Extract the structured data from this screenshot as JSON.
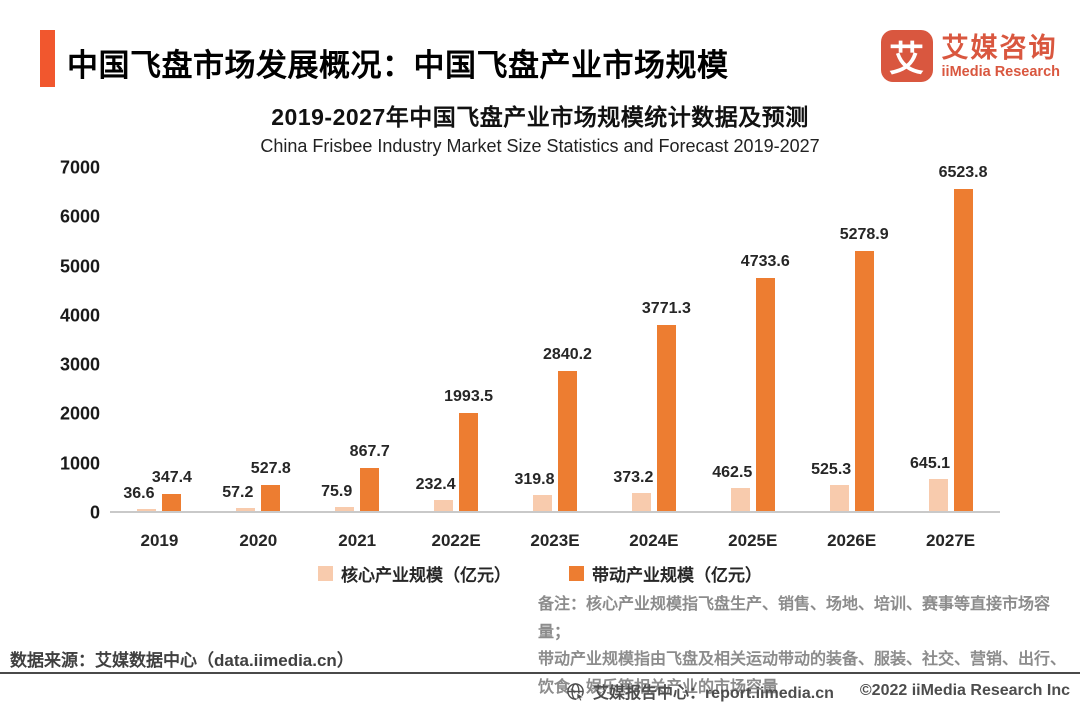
{
  "header": {
    "title": "中国飞盘市场发展概况：中国飞盘产业市场规模",
    "accent_color": "#F1572E"
  },
  "logo": {
    "icon_char": "艾",
    "name_cn": "艾媒咨询",
    "name_en": "iiMedia Research",
    "brand_color": "#D9573F"
  },
  "chart_data": {
    "type": "bar",
    "title": "2019-2027年中国飞盘产业市场规模统计数据及预测",
    "subtitle": "China Frisbee Industry Market Size Statistics and Forecast 2019-2027",
    "categories": [
      "2019",
      "2020",
      "2021",
      "2022E",
      "2023E",
      "2024E",
      "2025E",
      "2026E",
      "2027E"
    ],
    "series": [
      {
        "name": "核心产业规模（亿元）",
        "color": "#F8CBAD",
        "values": [
          36.6,
          57.2,
          75.9,
          232.4,
          319.8,
          373.2,
          462.5,
          525.3,
          645.1
        ]
      },
      {
        "name": "带动产业规模（亿元）",
        "color": "#ED7D31",
        "values": [
          347.4,
          527.8,
          867.7,
          1993.5,
          2840.2,
          3771.3,
          4733.6,
          5278.9,
          6523.8
        ]
      }
    ],
    "ylim": [
      0,
      7000
    ],
    "yticks": [
      0,
      1000,
      2000,
      3000,
      4000,
      5000,
      6000,
      7000
    ],
    "grid": false,
    "legend_position": "bottom"
  },
  "note": {
    "lines": [
      "备注：核心产业规模指飞盘生产、销售、场地、培训、赛事等直接市场容量；",
      "带动产业规模指由飞盘及相关运动带动的装备、服装、社交、营销、出行、",
      "饮食、娱乐等相关产业的市场容量"
    ]
  },
  "source": {
    "text": "数据来源：艾媒数据中心（data.iimedia.cn）"
  },
  "footer": {
    "report_center": "艾媒报告中心：report.iimedia.cn",
    "copyright": "©2022 iiMedia Research Inc"
  }
}
